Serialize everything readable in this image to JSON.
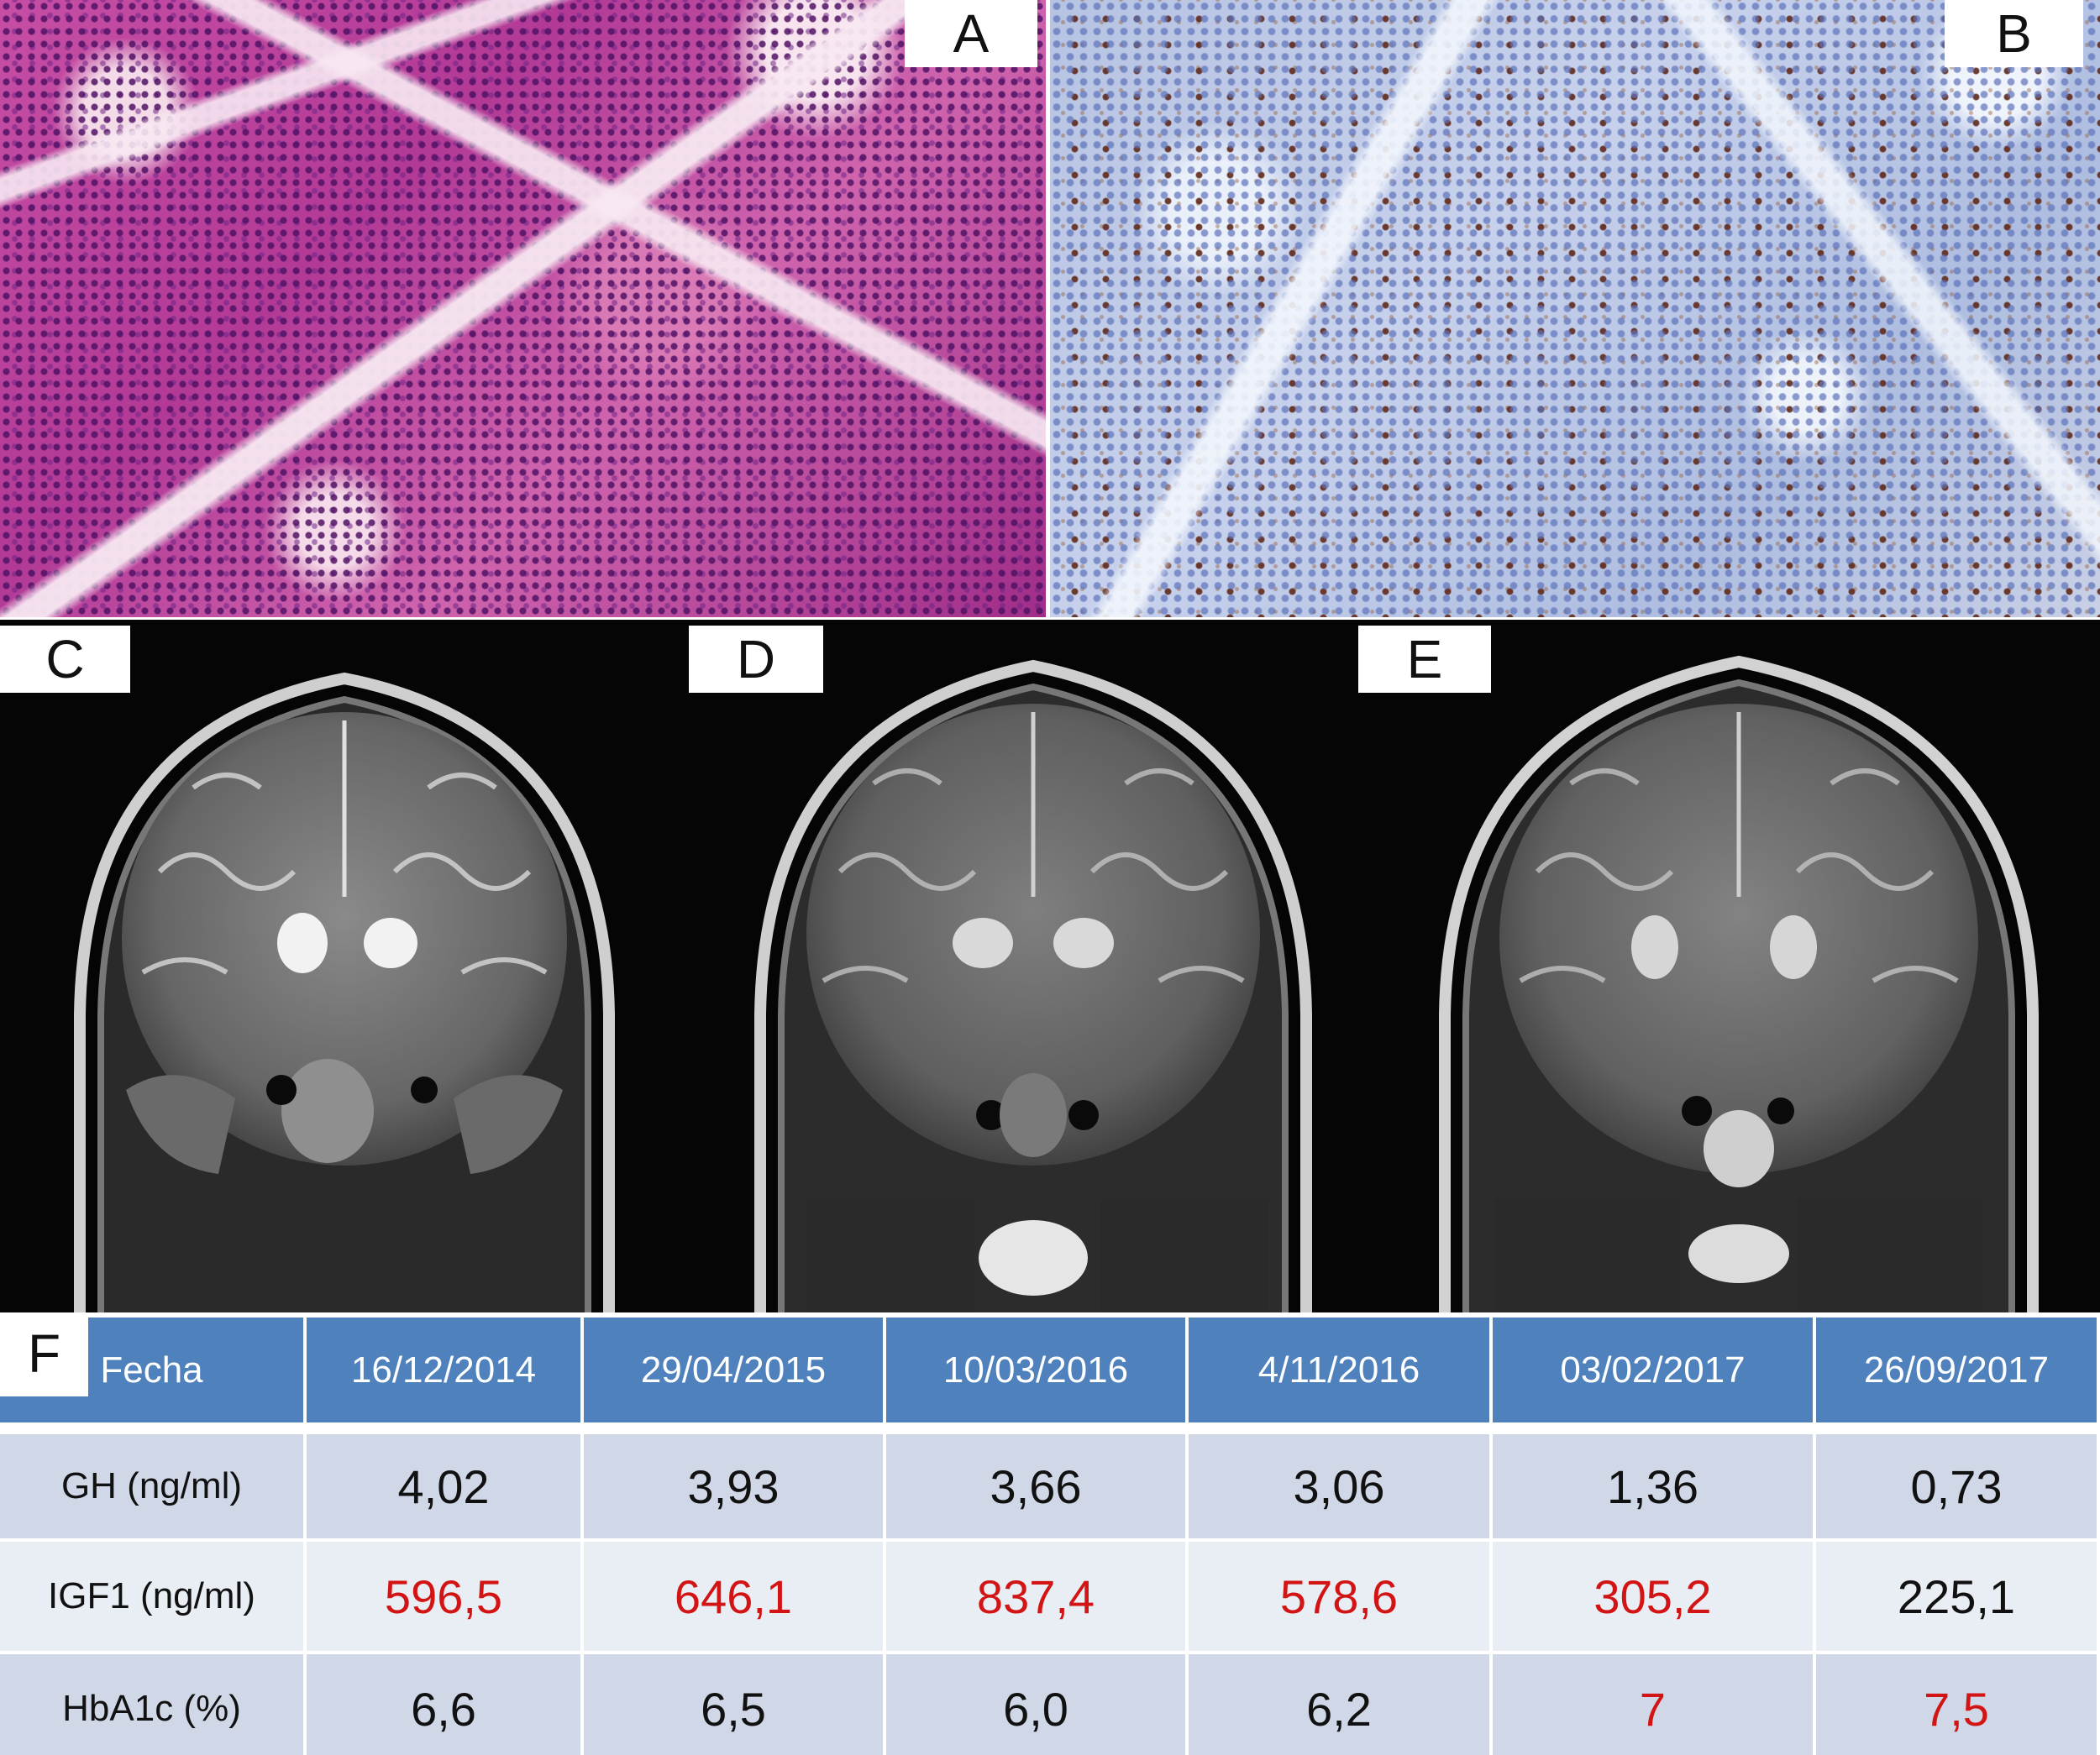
{
  "labels": {
    "a": "A",
    "b": "B",
    "c": "C",
    "d": "D",
    "e": "E",
    "f": "F"
  },
  "table": {
    "header": [
      "Fecha",
      "16/12/2014",
      "29/04/2015",
      "10/03/2016",
      "4/11/2016",
      "03/02/2017",
      "26/09/2017"
    ],
    "rows": [
      {
        "label": "GH (ng/ml)",
        "values": [
          "4,02",
          "3,93",
          "3,66",
          "3,06",
          "1,36",
          "0,73"
        ],
        "red": [
          false,
          false,
          false,
          false,
          false,
          false
        ]
      },
      {
        "label": "IGF1 (ng/ml)",
        "values": [
          "596,5",
          "646,1",
          "837,4",
          "578,6",
          "305,2",
          "225,1"
        ],
        "red": [
          true,
          true,
          true,
          true,
          true,
          false
        ]
      },
      {
        "label": "HbA1c (%)",
        "values": [
          "6,6",
          "6,5",
          "6,0",
          "6,2",
          "7",
          "7,5"
        ],
        "red": [
          false,
          false,
          false,
          false,
          true,
          true
        ]
      }
    ],
    "colors": {
      "header": "#4f81bd",
      "row_dark": "#d0d8e8",
      "row_light": "#e9edf4",
      "highlight": "#d21414"
    }
  }
}
